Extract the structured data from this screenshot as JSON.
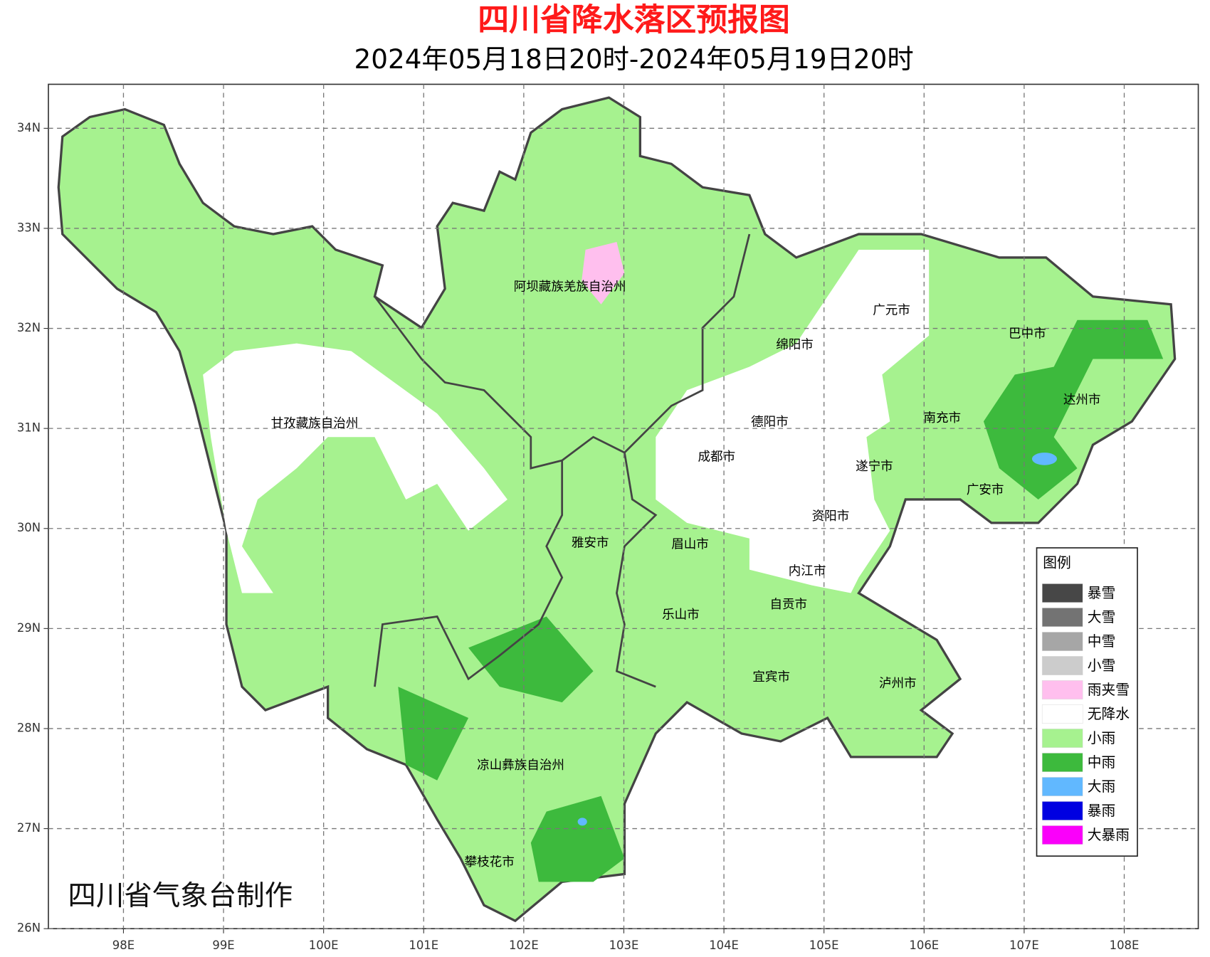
{
  "header": {
    "title": "四川省降水落区预报图",
    "subtitle": "2024年05月18日20时-2024年05月19日20时"
  },
  "map": {
    "lon_lim": [
      97.25,
      108.74
    ],
    "lat_lim": [
      26,
      34.44
    ],
    "lon_ticks": [
      {
        "value": 98,
        "label": "98E"
      },
      {
        "value": 99,
        "label": "99E"
      },
      {
        "value": 100,
        "label": "100E"
      },
      {
        "value": 101,
        "label": "101E"
      },
      {
        "value": 102,
        "label": "102E"
      },
      {
        "value": 103,
        "label": "103E"
      },
      {
        "value": 104,
        "label": "104E"
      },
      {
        "value": 105,
        "label": "105E"
      },
      {
        "value": 106,
        "label": "106E"
      },
      {
        "value": 107,
        "label": "107E"
      },
      {
        "value": 108,
        "label": "108E"
      }
    ],
    "lat_ticks": [
      {
        "value": 34,
        "label": "34N"
      },
      {
        "value": 33,
        "label": "33N"
      },
      {
        "value": 32,
        "label": "32N"
      },
      {
        "value": 31,
        "label": "31N"
      },
      {
        "value": 30,
        "label": "30N"
      },
      {
        "value": 29,
        "label": "29N"
      },
      {
        "value": 28,
        "label": "28N"
      },
      {
        "value": 27,
        "label": "27N"
      },
      {
        "value": 26,
        "label": "26N"
      }
    ],
    "cities": [
      "阿坝藏族羌族自治州",
      "广元市",
      "巴中市",
      "绵阳市",
      "达州市",
      "甘孜藏族自治州",
      "德阳市",
      "南充市",
      "成都市",
      "遂宁市",
      "广安市",
      "资阳市",
      "雅安市",
      "眉山市",
      "内江市",
      "乐山市",
      "自贡市",
      "宜宾市",
      "泸州市",
      "凉山彝族自治州",
      "攀枝花市"
    ]
  },
  "legend": {
    "title": "图例",
    "items": [
      {
        "name": "暴雪",
        "color": "#474747"
      },
      {
        "name": "大雪",
        "color": "#737373"
      },
      {
        "name": "中雪",
        "color": "#a6a6a6"
      },
      {
        "name": "小雪",
        "color": "#cccccc"
      },
      {
        "name": "雨夹雪",
        "color": "#ffbfee"
      },
      {
        "name": "无降水",
        "color": "#ffffff"
      },
      {
        "name": "小雨",
        "color": "#a6f28f"
      },
      {
        "name": "中雨",
        "color": "#3dba3d"
      },
      {
        "name": "大雨",
        "color": "#61b8ff"
      },
      {
        "name": "暴雨",
        "color": "#0000e1"
      },
      {
        "name": "大暴雨",
        "color": "#fa00fa"
      }
    ]
  },
  "footer": {
    "credit": "四川省气象台制作"
  }
}
